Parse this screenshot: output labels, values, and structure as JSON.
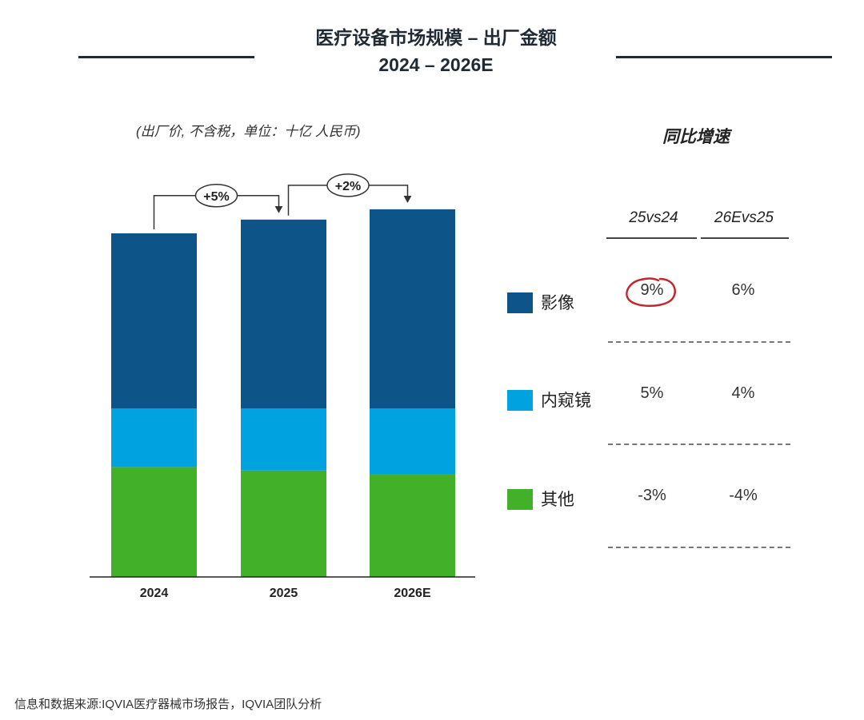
{
  "title_line1": "医疗设备市场规模 – 出厂金额",
  "title_line2": "2024 – 2026E",
  "unit_note": "(出厂价, 不含税，单位：十亿 人民币)",
  "yoy": {
    "title": "同比增速",
    "columns": [
      "25vs24",
      "26Evs25"
    ],
    "rows": [
      {
        "label": "影像",
        "values": [
          "9%",
          "6%"
        ]
      },
      {
        "label": "内窥镜",
        "values": [
          "5%",
          "4%"
        ]
      },
      {
        "label": "其他",
        "values": [
          "-3%",
          "-4%"
        ]
      }
    ],
    "highlight": {
      "row": 0,
      "col": 0,
      "color": "#c0282d"
    }
  },
  "colors": {
    "imaging": "#0d5488",
    "endoscope": "#00a3e0",
    "other": "#43b02a",
    "annotation": "#333333"
  },
  "source": "信息和数据来源:IQVIA医疗器械市场报告，IQVIA团队分析",
  "chart_data": {
    "type": "bar",
    "stacked": true,
    "categories": [
      "2024",
      "2025",
      "2026E"
    ],
    "series": [
      {
        "name": "其他",
        "values": [
          32,
          31,
          30
        ]
      },
      {
        "name": "内窥镜",
        "values": [
          17,
          18,
          19
        ]
      },
      {
        "name": "影像",
        "values": [
          51,
          55,
          58
        ]
      }
    ],
    "growth_annotations": [
      {
        "from": "2024",
        "to": "2025",
        "label": "+5%"
      },
      {
        "from": "2025",
        "to": "2026E",
        "label": "+2%"
      }
    ],
    "ylim": [
      0,
      120
    ],
    "legend_position": "right",
    "grid": false,
    "y_axis_visible": false
  }
}
